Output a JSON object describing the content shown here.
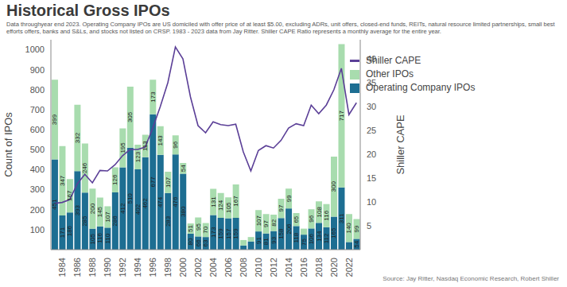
{
  "chart_data": {
    "type": "bar",
    "title": "Historical Gross IPOs",
    "subtitle": "Data throughyear end 2023. Operating Company IPOs are US domiciled with offer price of at least $5.00, excluding ADRs, unit offers, closed-end funds, REITs, natural resource limited partnerships, small best efforts offers, banks and S&Ls, and stocks not listed on CRSP. 1983 - 2023 data from Jay Ritter. Shiller CAPE Ratio represents a monthly average for the entire year.",
    "source": "Source: Jay Ritter, Nasdaq Economic Research, Robert Shiller",
    "y_label": "Count of IPOs",
    "y2_label": "Shiller CAPE",
    "categories": [
      null,
      "1984",
      null,
      "1986",
      null,
      "1988",
      null,
      "1990",
      null,
      "1992",
      null,
      "1994",
      null,
      "1996",
      null,
      "1998",
      null,
      "2000",
      null,
      "2002",
      null,
      "2004",
      null,
      "2006",
      null,
      "2008",
      null,
      "2010",
      null,
      "2012",
      null,
      "2014",
      null,
      "2016",
      null,
      "2018",
      null,
      "2020",
      null,
      "2022",
      null
    ],
    "stacked": true,
    "data_labels": true,
    "legend": "top right",
    "grid": false,
    "ylim": [
      0,
      1050
    ],
    "yticks": [
      100,
      200,
      300,
      400,
      500,
      600,
      700,
      800,
      900,
      1000
    ],
    "y2lim": [
      0,
      44
    ],
    "y2ticks": [
      5,
      10,
      15,
      20,
      25,
      30,
      35,
      40
    ],
    "series": [
      {
        "name": "Operating Company IPOs",
        "type": "bar",
        "color": "#1d6e92",
        "values": [
          451,
          171,
          186,
          393,
          285,
          105,
          116,
          110,
          286,
          412,
          510,
          402,
          462,
          677,
          474,
          283,
          476,
          380,
          80,
          66,
          63,
          173,
          159,
          157,
          159,
          21,
          41,
          91,
          81,
          93,
          158,
          206,
          118,
          75,
          106,
          134,
          112,
          165,
          311,
          38,
          54
        ],
        "value_labels": [
          "451",
          "171",
          "186",
          "393",
          "285",
          "105",
          "116",
          "110",
          "286",
          "412",
          "510",
          "402",
          "462",
          "677",
          "474",
          "283",
          "476",
          "380",
          "80",
          "66",
          "63",
          "173",
          "159",
          "157",
          "159",
          null,
          null,
          "91",
          "81",
          "93",
          "158",
          "206",
          "118",
          "75",
          "106",
          "134",
          "112",
          "165",
          "311",
          null,
          "54"
        ]
      },
      {
        "name": "Other IPOs",
        "type": "bar",
        "color": "#a8dcae",
        "values": [
          399,
          347,
          167,
          332,
          246,
          200,
          145,
          107,
          126,
          195,
          305,
          123,
          113,
          173,
          143,
          107,
          96,
          54,
          51,
          95,
          70,
          131,
          124,
          105,
          167,
          27,
          22,
          107,
          97,
          82,
          97,
          99,
          65,
          30,
          96,
          108,
          116,
          300,
          717,
          140,
          99
        ],
        "value_labels": [
          "399",
          "347",
          "167",
          "332",
          "246",
          "200",
          "145",
          "107",
          "126",
          "195",
          "305",
          "123",
          "113",
          "173",
          "143",
          "107",
          "96",
          "54",
          "51",
          "95",
          "70",
          "131",
          "124",
          "105",
          "167",
          null,
          null,
          "107",
          "97",
          "82",
          "97",
          "99",
          "65",
          null,
          "96",
          "108",
          "116",
          "300",
          "717",
          "140",
          "99"
        ]
      },
      {
        "name": "Shiller CAPE",
        "type": "line",
        "axis": "y2",
        "color": "#5b3f97",
        "marker": "none",
        "values": [
          9.7,
          9.9,
          10.5,
          13.8,
          15.8,
          14.0,
          16.6,
          16.5,
          17.8,
          19.7,
          21.0,
          21.0,
          21.5,
          25.5,
          30.0,
          35.0,
          42.5,
          40.0,
          32.0,
          26.0,
          24.5,
          26.8,
          26.2,
          26.0,
          26.3,
          20.5,
          16.5,
          20.8,
          21.8,
          21.3,
          22.9,
          25.5,
          26.4,
          26.0,
          30.3,
          28.5,
          30.3,
          33.5,
          38.0,
          28.3,
          30.8
        ]
      }
    ]
  }
}
